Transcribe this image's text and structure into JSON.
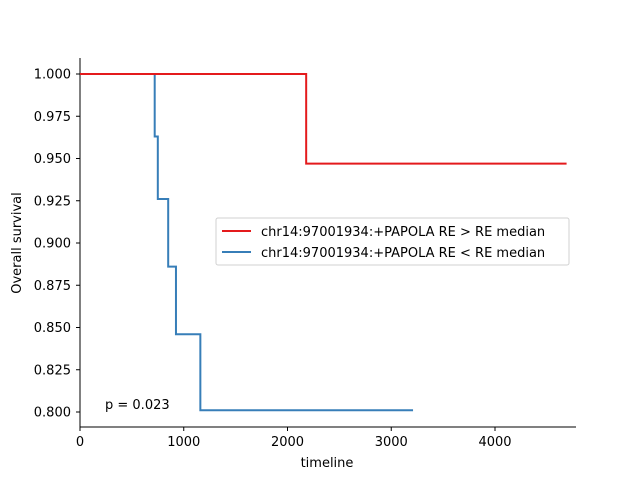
{
  "chart_data": {
    "type": "line",
    "subtype": "kaplan-meier step",
    "title": "",
    "xlabel": "timeline",
    "ylabel": "Overall survival",
    "xlim": [
      0,
      4780
    ],
    "ylim": [
      0.791,
      1.009
    ],
    "x_ticks": [
      0,
      1000,
      2000,
      3000,
      4000
    ],
    "x_tick_labels": [
      "0",
      "1000",
      "2000",
      "3000",
      "4000"
    ],
    "y_ticks": [
      0.8,
      0.825,
      0.85,
      0.875,
      0.9,
      0.925,
      0.95,
      0.975,
      1.0
    ],
    "y_tick_labels": [
      "0.800",
      "0.825",
      "0.850",
      "0.875",
      "0.900",
      "0.925",
      "0.950",
      "0.975",
      "1.000"
    ],
    "grid": false,
    "legend_position": "center right",
    "series": [
      {
        "name": "chr14:97001934:+PAPOLA RE > RE median",
        "color": "#e41a1c",
        "x": [
          0,
          2180,
          4690
        ],
        "y": [
          1.0,
          0.947,
          0.947
        ]
      },
      {
        "name": "chr14:97001934:+PAPOLA RE < RE median",
        "color": "#377eb8",
        "x": [
          0,
          720,
          750,
          850,
          925,
          1160,
          3210
        ],
        "y": [
          1.0,
          0.963,
          0.926,
          0.886,
          0.846,
          0.801,
          0.801
        ]
      }
    ],
    "annotations": [
      {
        "text": "p = 0.023",
        "x": 250,
        "y": 0.803
      }
    ]
  }
}
